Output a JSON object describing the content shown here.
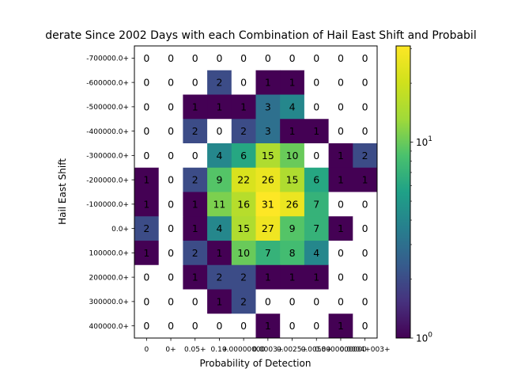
{
  "chart_data": {
    "type": "heatmap",
    "title": "derate Since 2002 Days with each Combination of Hail East Shift and Probabil",
    "xlabel": "Probability of Detection",
    "ylabel": "Hail East Shift",
    "x_tick_labels": [
      "0",
      "0+",
      "0.05+",
      "0.1+",
      "0.00000000",
      "0.0003+",
      "0.0025+",
      "0.0058+",
      "0.0000000000",
      "0.0004+003+"
    ],
    "y_tick_labels": [
      "-700000.0+",
      "-600000.0+",
      "-500000.0+",
      "-400000.0+",
      "-300000.0+",
      "-200000.0+",
      "-100000.0+",
      "0.0+",
      "100000.0+",
      "200000.0+",
      "300000.0+",
      "400000.0+"
    ],
    "values": [
      [
        0,
        0,
        0,
        0,
        0,
        0,
        0,
        0,
        0,
        0
      ],
      [
        0,
        0,
        0,
        2,
        0,
        1,
        1,
        0,
        0,
        0
      ],
      [
        0,
        0,
        1,
        1,
        1,
        3,
        4,
        0,
        0,
        0
      ],
      [
        0,
        0,
        2,
        0,
        2,
        3,
        1,
        1,
        0,
        0
      ],
      [
        0,
        0,
        0,
        4,
        6,
        15,
        10,
        0,
        1,
        2
      ],
      [
        1,
        0,
        2,
        9,
        22,
        26,
        15,
        6,
        1,
        1
      ],
      [
        1,
        0,
        1,
        11,
        16,
        31,
        26,
        7,
        0,
        0
      ],
      [
        2,
        0,
        1,
        4,
        15,
        27,
        9,
        7,
        1,
        0
      ],
      [
        1,
        0,
        2,
        1,
        10,
        7,
        8,
        4,
        0,
        0
      ],
      [
        0,
        0,
        1,
        2,
        2,
        1,
        1,
        1,
        0,
        0
      ],
      [
        0,
        0,
        0,
        1,
        2,
        0,
        0,
        0,
        0,
        0
      ],
      [
        0,
        0,
        0,
        0,
        0,
        1,
        0,
        0,
        1,
        0
      ]
    ],
    "color_scale": "log",
    "colormap": "viridis",
    "zero_color": "#ffffff",
    "vmin": 1,
    "vmax": 31,
    "colorbar_ticks": [
      {
        "value": 1,
        "label": "10^0"
      },
      {
        "value": 10,
        "label": "10^1"
      }
    ]
  }
}
